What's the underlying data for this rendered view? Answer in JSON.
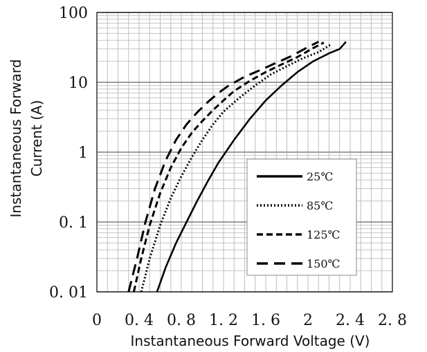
{
  "chart_data": {
    "type": "line",
    "title": "",
    "xlabel": "Instantaneous Forward Voltage (V)",
    "ylabel_lines": [
      "Instantaneous Forward",
      "Current (A)"
    ],
    "xlim": [
      0,
      2.8
    ],
    "ylim": [
      0.01,
      100
    ],
    "yscale": "log",
    "grid": true,
    "legend_position": "lower-right",
    "x_tick_labels": [
      "0",
      "0. 4",
      "0. 8",
      "1. 2",
      "1. 6",
      "2",
      "2. 4",
      "2. 8"
    ],
    "x_tick_values": [
      0,
      0.4,
      0.8,
      1.2,
      1.6,
      2.0,
      2.4,
      2.8
    ],
    "y_tick_labels": [
      "0. 01",
      "0. 1",
      "1",
      "10",
      "100"
    ],
    "y_tick_values": [
      0.01,
      0.1,
      1,
      10,
      100
    ],
    "series": [
      {
        "name": "25℃",
        "dash": "solid",
        "x": [
          0.57,
          0.65,
          0.75,
          0.85,
          0.95,
          1.05,
          1.15,
          1.3,
          1.45,
          1.6,
          1.75,
          1.9,
          2.05,
          2.2,
          2.3,
          2.36
        ],
        "y": [
          0.01,
          0.022,
          0.05,
          0.1,
          0.2,
          0.38,
          0.7,
          1.5,
          3.0,
          5.5,
          9.0,
          14,
          20,
          26,
          30,
          38
        ]
      },
      {
        "name": "85℃",
        "dash": "dotted",
        "x": [
          0.42,
          0.5,
          0.6,
          0.7,
          0.8,
          0.9,
          1.0,
          1.1,
          1.2,
          1.35,
          1.5,
          1.65,
          1.8,
          1.95,
          2.1,
          2.22
        ],
        "y": [
          0.01,
          0.03,
          0.09,
          0.22,
          0.45,
          0.85,
          1.5,
          2.5,
          3.8,
          6.0,
          9.0,
          13,
          17,
          22,
          27,
          35
        ]
      },
      {
        "name": "125℃",
        "dash": "dashed",
        "x": [
          0.35,
          0.42,
          0.5,
          0.6,
          0.7,
          0.8,
          0.9,
          1.0,
          1.1,
          1.2,
          1.3,
          1.45,
          1.6,
          1.75,
          1.9,
          2.05,
          2.15
        ],
        "y": [
          0.01,
          0.03,
          0.09,
          0.26,
          0.6,
          1.15,
          1.9,
          2.8,
          4.0,
          5.5,
          7.5,
          10.5,
          14,
          18,
          23,
          31,
          37
        ]
      },
      {
        "name": "150℃",
        "dash": "longdash",
        "x": [
          0.3,
          0.38,
          0.46,
          0.55,
          0.65,
          0.75,
          0.85,
          0.95,
          1.05,
          1.15,
          1.25,
          1.4,
          1.55,
          1.7,
          1.85,
          2.0,
          2.1
        ],
        "y": [
          0.01,
          0.03,
          0.1,
          0.3,
          0.75,
          1.5,
          2.5,
          3.7,
          5.2,
          7.0,
          9.0,
          12,
          15,
          19,
          24,
          32,
          38
        ]
      }
    ]
  }
}
